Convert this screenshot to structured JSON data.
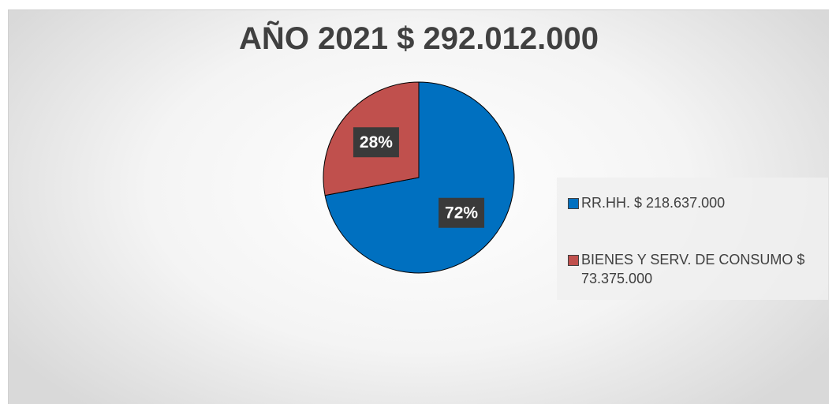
{
  "chart_data": {
    "type": "pie",
    "title": "AÑO 2021 $ 292.012.000",
    "categories": [
      "RR.HH. $ 218.637.000",
      "BIENES Y SERV. DE CONSUMO $ 73.375.000"
    ],
    "values": [
      72,
      28
    ],
    "value_labels": [
      "72%",
      "28%"
    ],
    "colors": [
      "#0070c0",
      "#c0504d"
    ],
    "legend": "right"
  }
}
